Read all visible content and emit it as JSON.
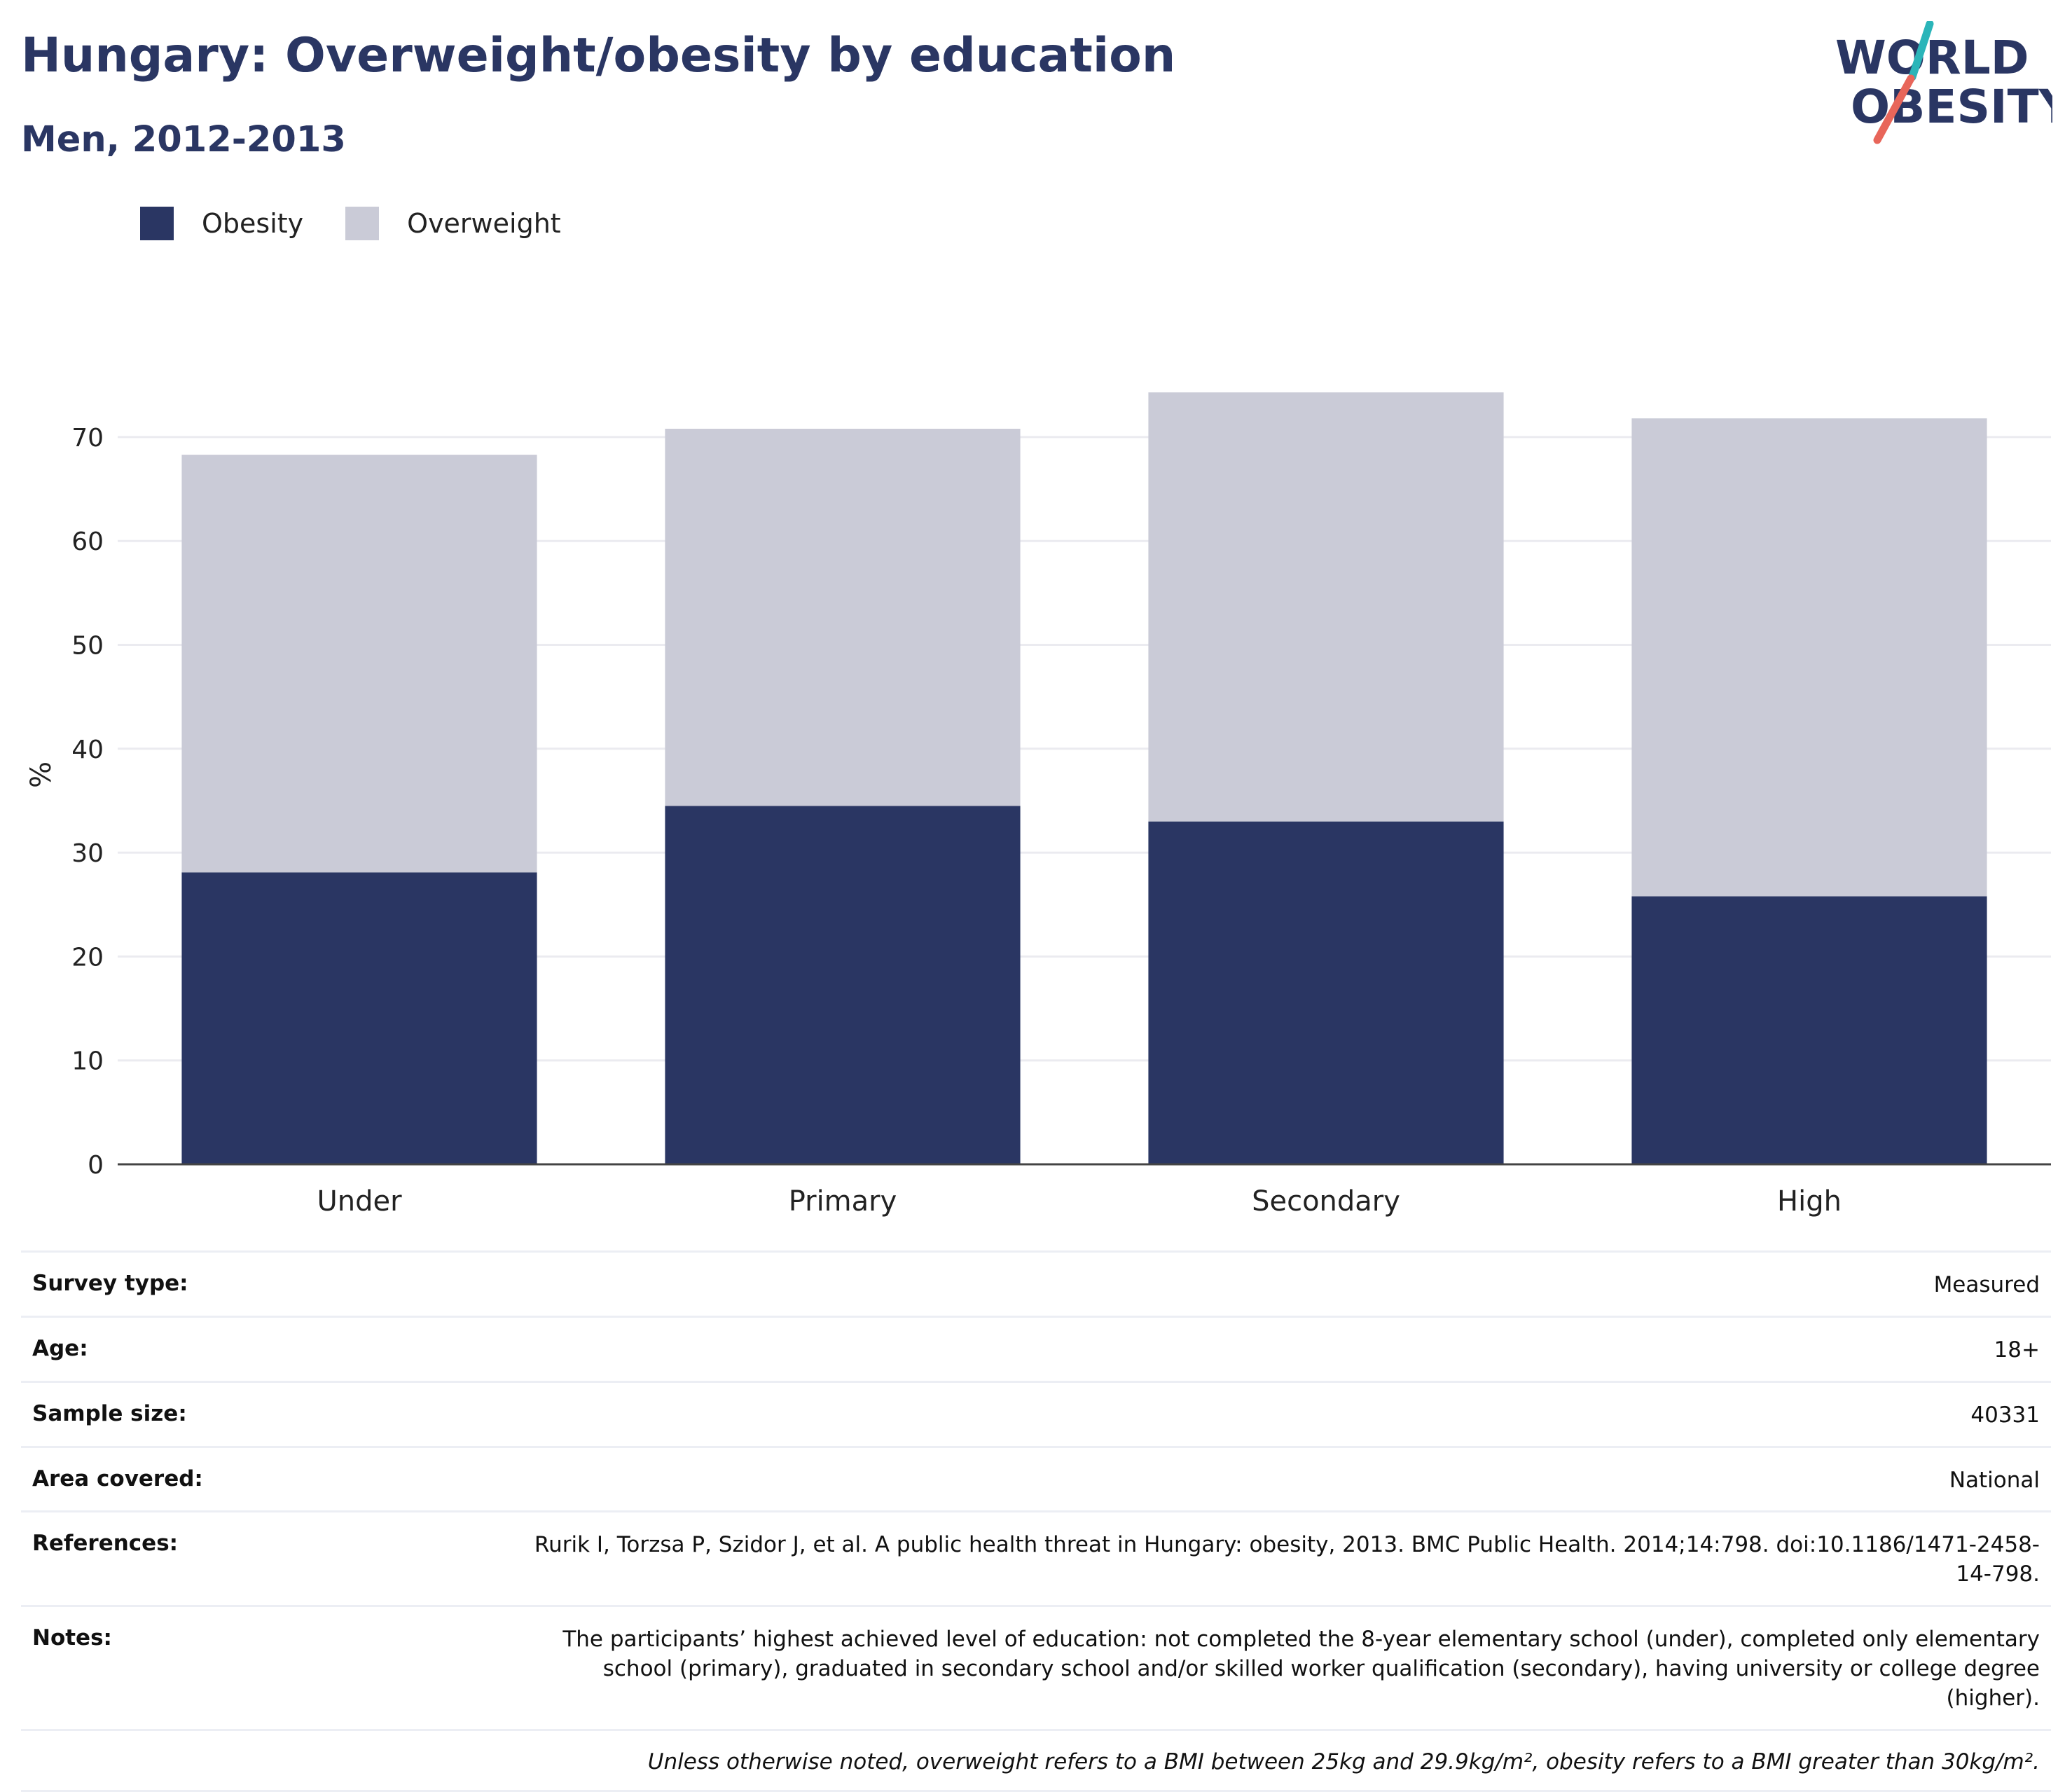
{
  "header": {
    "title": "Hungary: Overweight/obesity by education",
    "subtitle": "Men, 2012-2013"
  },
  "logo": {
    "line1": "WORLD",
    "line2": "OBESITY",
    "accent_teal": "#2bb5b9",
    "accent_coral": "#e8665a"
  },
  "colors": {
    "obesity": "#2a3663",
    "overweight": "#cacbd7",
    "text": "#2a3663"
  },
  "legend": [
    {
      "label": "Obesity",
      "color": "#2a3663"
    },
    {
      "label": "Overweight",
      "color": "#cacbd7"
    }
  ],
  "chart_data": {
    "type": "bar",
    "stacked": true,
    "categories": [
      "Under",
      "Primary",
      "Secondary",
      "High"
    ],
    "series": [
      {
        "name": "Obesity",
        "values": [
          28.1,
          34.5,
          33.0,
          25.8
        ]
      },
      {
        "name": "Overweight",
        "values": [
          40.2,
          36.3,
          41.3,
          46.0
        ]
      }
    ],
    "ylabel": "%",
    "yticks": [
      0,
      10,
      20,
      30,
      40,
      50,
      60,
      70
    ],
    "ylim": [
      0,
      75
    ],
    "grid": true,
    "legend_position": "top-left"
  },
  "meta": {
    "rows": [
      {
        "key": "Survey type:",
        "value": "Measured"
      },
      {
        "key": "Age:",
        "value": "18+"
      },
      {
        "key": "Sample size:",
        "value": "40331"
      },
      {
        "key": "Area covered:",
        "value": "National"
      },
      {
        "key": "References:",
        "value": "Rurik I, Torzsa P, Szidor J, et al. A public health threat in Hungary: obesity, 2013. BMC Public Health. 2014;14:798. doi:10.1186/1471-2458-14-798."
      },
      {
        "key": "Notes:",
        "value": "The participants’ highest achieved level of education: not completed the 8-year elementary school (under), completed only elementary school (primary), graduated in secondary school and/or skilled worker qualification (secondary), having university or college degree (higher)."
      }
    ],
    "footnote": "Unless otherwise noted, overweight refers to a BMI between 25kg and 29.9kg/m², obesity refers to a BMI greater than 30kg/m²."
  }
}
